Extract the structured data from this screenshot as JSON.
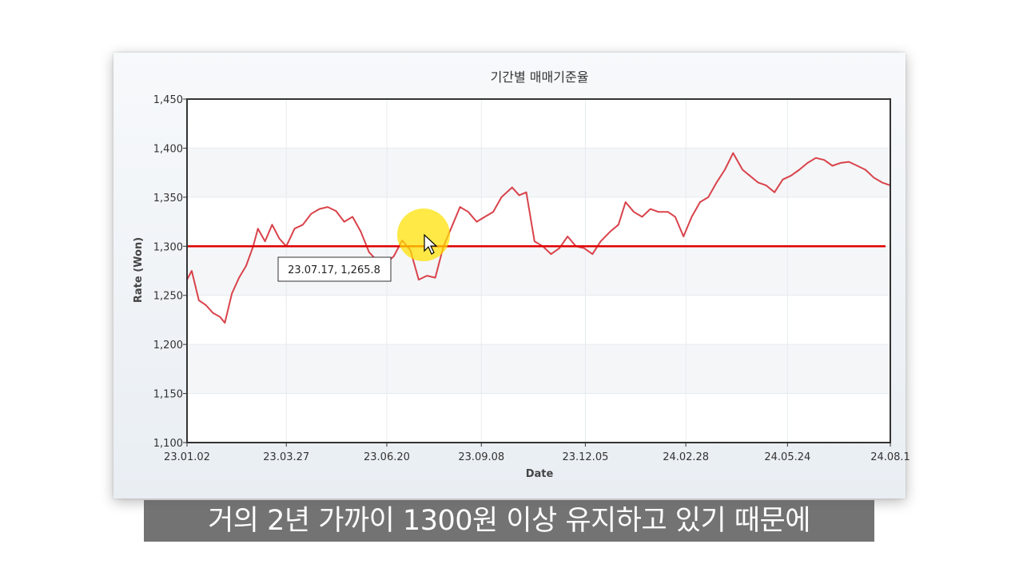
{
  "chart_data": {
    "type": "line",
    "title": "기간별 매매기준율",
    "xlabel": "Date",
    "ylabel": "Rate (Won)",
    "ylim": [
      1100,
      1450
    ],
    "yticks": [
      1100,
      1150,
      1200,
      1250,
      1300,
      1350,
      1400,
      1450
    ],
    "ytick_labels": [
      "1,100",
      "1,150",
      "1,200",
      "1,250",
      "1,300",
      "1,350",
      "1,400",
      "1,450"
    ],
    "xticks": [
      "2023-01-02",
      "2023-03-27",
      "2023-06-20",
      "2023-09-08",
      "2023-12-05",
      "2024-02-28",
      "2024-05-24",
      "2024-08-19"
    ],
    "xtick_labels": [
      "23.01.02",
      "23.03.27",
      "23.06.20",
      "23.09.08",
      "23.12.05",
      "24.02.28",
      "24.05.24",
      "24.08.1"
    ],
    "xlim": [
      "2023-01-02",
      "2024-08-19"
    ],
    "grid": true,
    "colors": {
      "series": "#d9434b",
      "threshold": "#e00000",
      "axis": "#333333",
      "grid": "#e7ebef"
    },
    "series": [
      {
        "x": [
          "2023-01-02",
          "2023-01-06",
          "2023-01-12",
          "2023-01-18",
          "2023-01-24",
          "2023-01-30",
          "2023-02-03",
          "2023-02-09",
          "2023-02-15",
          "2023-02-21",
          "2023-02-27",
          "2023-03-03",
          "2023-03-09",
          "2023-03-15",
          "2023-03-21",
          "2023-03-27",
          "2023-04-03",
          "2023-04-10",
          "2023-04-17",
          "2023-04-24",
          "2023-05-01",
          "2023-05-08",
          "2023-05-15",
          "2023-05-22",
          "2023-05-29",
          "2023-06-05",
          "2023-06-12",
          "2023-06-19",
          "2023-06-26",
          "2023-07-03",
          "2023-07-10",
          "2023-07-17",
          "2023-07-24",
          "2023-07-31",
          "2023-08-07",
          "2023-08-14",
          "2023-08-21",
          "2023-08-28",
          "2023-09-04",
          "2023-09-11",
          "2023-09-18",
          "2023-09-25",
          "2023-10-04",
          "2023-10-10",
          "2023-10-16",
          "2023-10-23",
          "2023-10-30",
          "2023-11-06",
          "2023-11-13",
          "2023-11-20",
          "2023-11-27",
          "2023-12-04",
          "2023-12-11",
          "2023-12-18",
          "2023-12-26",
          "2024-01-02",
          "2024-01-08",
          "2024-01-15",
          "2024-01-22",
          "2024-01-29",
          "2024-02-05",
          "2024-02-13",
          "2024-02-19",
          "2024-02-26",
          "2024-03-04",
          "2024-03-11",
          "2024-03-18",
          "2024-03-25",
          "2024-04-01",
          "2024-04-08",
          "2024-04-16",
          "2024-04-22",
          "2024-04-29",
          "2024-05-06",
          "2024-05-13",
          "2024-05-20",
          "2024-05-27",
          "2024-06-03",
          "2024-06-10",
          "2024-06-17",
          "2024-06-24",
          "2024-07-01",
          "2024-07-08",
          "2024-07-15",
          "2024-07-22",
          "2024-07-29",
          "2024-08-05",
          "2024-08-12",
          "2024-08-19"
        ],
        "values": [
          1266,
          1275,
          1245,
          1240,
          1232,
          1228,
          1222,
          1252,
          1268,
          1280,
          1300,
          1318,
          1305,
          1322,
          1308,
          1300,
          1318,
          1322,
          1333,
          1338,
          1340,
          1336,
          1325,
          1330,
          1315,
          1294,
          1285,
          1282,
          1290,
          1306,
          1296,
          1266,
          1270,
          1268,
          1300,
          1320,
          1340,
          1335,
          1325,
          1330,
          1335,
          1350,
          1360,
          1352,
          1355,
          1305,
          1300,
          1292,
          1298,
          1310,
          1300,
          1298,
          1292,
          1305,
          1315,
          1322,
          1345,
          1335,
          1330,
          1338,
          1335,
          1335,
          1330,
          1310,
          1330,
          1345,
          1350,
          1365,
          1378,
          1395,
          1378,
          1372,
          1365,
          1362,
          1355,
          1368,
          1372,
          1378,
          1385,
          1390,
          1388,
          1382,
          1385,
          1386,
          1382,
          1378,
          1370,
          1365,
          1362
        ]
      }
    ],
    "threshold": 1300,
    "tooltip": "23.07.17, 1,265.8"
  },
  "caption": "거의 2년 가까이 1300원 이상 유지하고 있기 때문에"
}
